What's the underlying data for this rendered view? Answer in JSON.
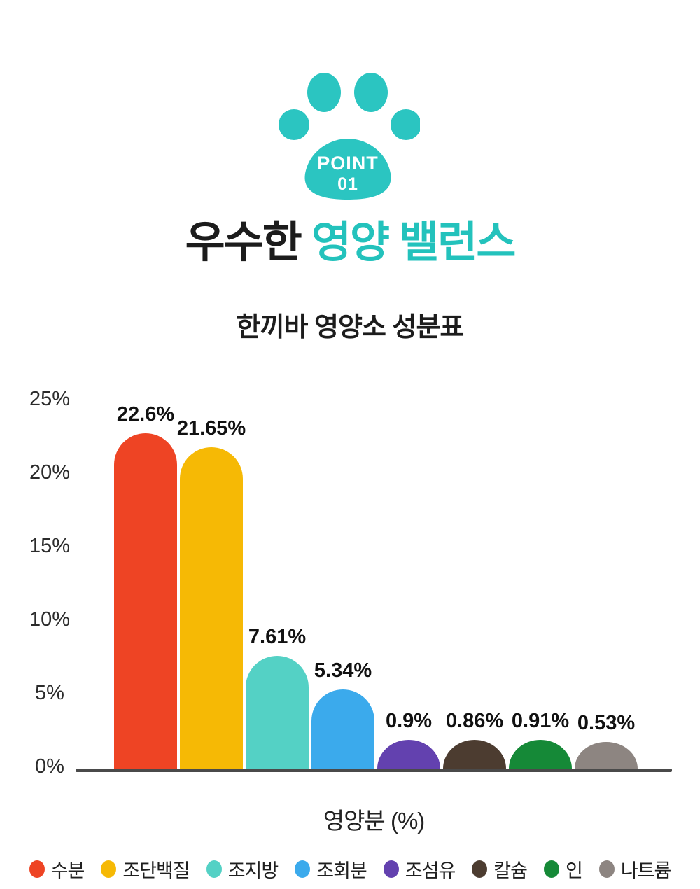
{
  "badge": {
    "label": "POINT",
    "number": "01"
  },
  "title": {
    "black_part": "우수한",
    "accent_part": " 영양 밸런스"
  },
  "subtitle": "한끼바 영양소 성분표",
  "colors": {
    "accent_teal": "#23C2BC",
    "paw_teal": "#2BC5C1",
    "axis_line": "#4A4A4A"
  },
  "chart_data": {
    "type": "bar",
    "title": "한끼바 영양소 성분표",
    "xlabel": "영양분 (%)",
    "categories": [
      "수분",
      "조단백질",
      "조지방",
      "조회분",
      "조섬유",
      "칼슘",
      "인",
      "나트륨"
    ],
    "values": [
      22.6,
      21.65,
      7.61,
      5.34,
      0.9,
      0.86,
      0.91,
      0.53
    ],
    "value_labels": [
      "22.6%",
      "21.65%",
      "7.61%",
      "5.34%",
      "0.9%",
      "0.86%",
      "0.91%",
      "0.53%"
    ],
    "bar_colors": [
      "#EE4424",
      "#F6B905",
      "#54D1C5",
      "#3BAAEC",
      "#6341AF",
      "#4C3C30",
      "#158937",
      "#8D8581"
    ],
    "y_ticks": [
      "25%",
      "20%",
      "15%",
      "10%",
      "5%",
      "0%"
    ],
    "ylim": [
      0,
      25
    ],
    "grid": false,
    "legend_position": "bottom",
    "bar_shape": "rounded-top"
  }
}
